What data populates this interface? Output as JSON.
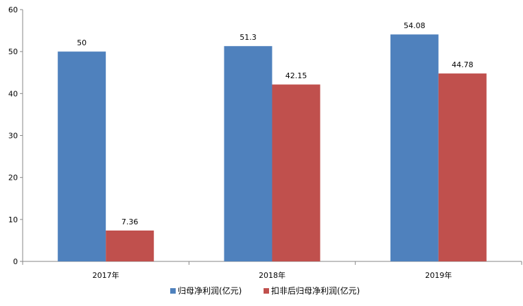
{
  "chart_data": {
    "type": "bar",
    "title": "",
    "xlabel": "",
    "ylabel": "",
    "categories": [
      "2017年",
      "2018年",
      "2019年"
    ],
    "series": [
      {
        "name": "归母净利润(亿元)",
        "values": [
          50,
          51.3,
          54.08
        ],
        "value_labels": [
          "50",
          "51.3",
          "54.08"
        ],
        "color": "#4f81bd"
      },
      {
        "name": "扣非后归母净利润(亿元)",
        "values": [
          7.36,
          42.15,
          44.78
        ],
        "value_labels": [
          "7.36",
          "42.15",
          "44.78"
        ],
        "color": "#c0504d"
      }
    ],
    "ylim": [
      0,
      60
    ],
    "yticks": [
      0,
      10,
      20,
      30,
      40,
      50,
      60
    ],
    "grid": false,
    "legend_position": "bottom"
  }
}
